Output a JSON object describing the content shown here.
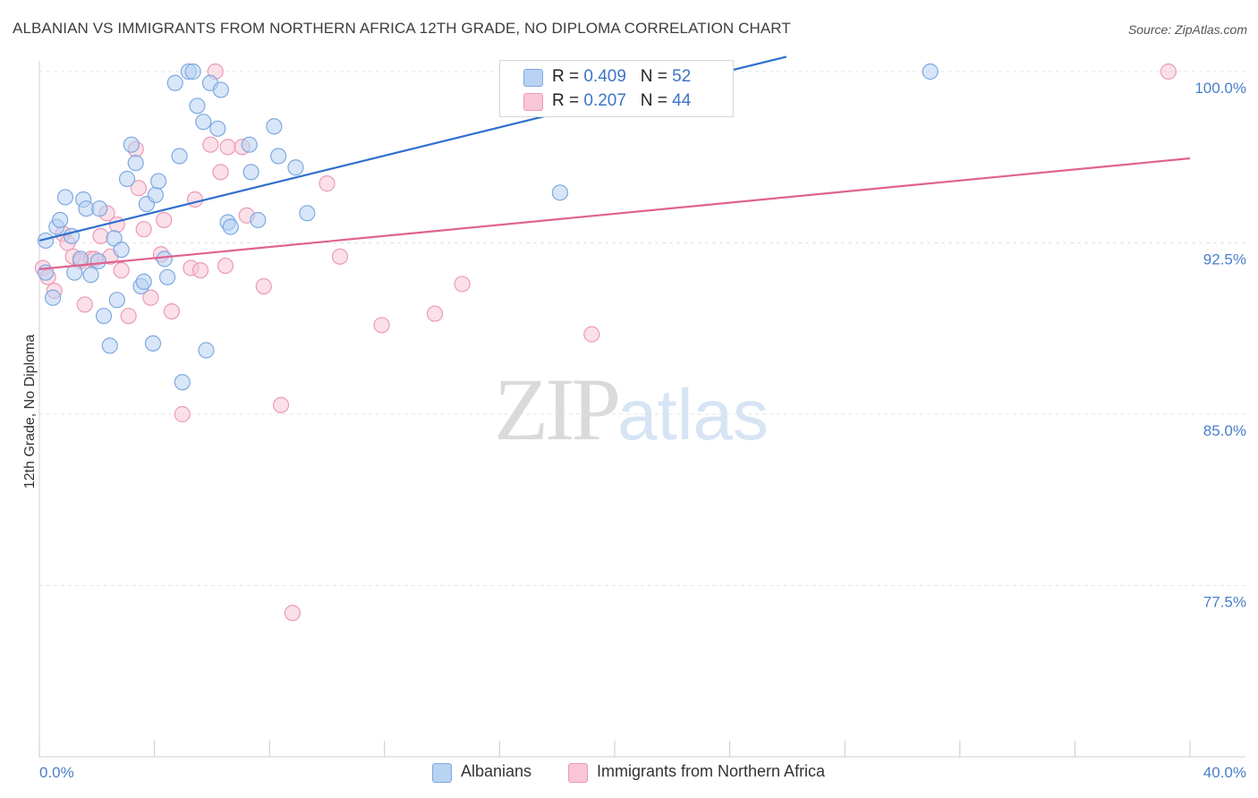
{
  "header": {
    "title": "ALBANIAN VS IMMIGRANTS FROM NORTHERN AFRICA 12TH GRADE, NO DIPLOMA CORRELATION CHART",
    "source": "Source: ZipAtlas.com"
  },
  "watermark": {
    "zip": "ZIP",
    "atlas": "atlas"
  },
  "legend": {
    "albanians": {
      "r_label": "R = ",
      "r_value": "0.409",
      "n_label": "N = ",
      "n_value": "52"
    },
    "immigrants": {
      "r_label": "R = ",
      "r_value": "0.207",
      "n_label": "N = ",
      "n_value": "44"
    }
  },
  "bottom_legend": {
    "albanians": "Albanians",
    "immigrants": "Immigrants from Northern Africa"
  },
  "colors": {
    "blue_fill": "#b8d2f2",
    "blue_stroke": "#7ea9e0",
    "blue_line": "#2f6fcc",
    "pink_fill": "#f8c6d6",
    "pink_stroke": "#ec9ab6",
    "pink_line": "#e0628e",
    "grid": "#e3e3e3",
    "tick_text": "#4a7ec9"
  },
  "chart_data": {
    "type": "scatter",
    "title": "ALBANIAN VS IMMIGRANTS FROM NORTHERN AFRICA 12TH GRADE, NO DIPLOMA CORRELATION CHART",
    "xlabel": "",
    "ylabel": "12th Grade, No Diploma",
    "xlim": [
      0,
      40
    ],
    "ylim": [
      70.0,
      101.0
    ],
    "x_tick_labels": [
      "0.0%",
      "40.0%"
    ],
    "y_ticks": [
      {
        "value": 77.5,
        "label": "77.5%"
      },
      {
        "value": 85.0,
        "label": "85.0%"
      },
      {
        "value": 92.5,
        "label": "92.5%"
      },
      {
        "value": 100.0,
        "label": "100.0%"
      }
    ],
    "series": [
      {
        "name": "Albanians",
        "r": 0.409,
        "n": 52,
        "trend": {
          "x": [
            0.0,
            25.97
          ],
          "y": [
            92.6,
            100.65
          ]
        },
        "points": [
          {
            "x": 0.22,
            "y": 92.6
          },
          {
            "x": 0.22,
            "y": 91.2
          },
          {
            "x": 0.47,
            "y": 90.1
          },
          {
            "x": 0.6,
            "y": 93.2
          },
          {
            "x": 0.72,
            "y": 93.5
          },
          {
            "x": 0.9,
            "y": 94.5
          },
          {
            "x": 1.12,
            "y": 92.8
          },
          {
            "x": 1.22,
            "y": 91.2
          },
          {
            "x": 1.43,
            "y": 91.8
          },
          {
            "x": 1.53,
            "y": 94.4
          },
          {
            "x": 1.63,
            "y": 94.0
          },
          {
            "x": 1.79,
            "y": 91.1
          },
          {
            "x": 2.05,
            "y": 91.7
          },
          {
            "x": 2.09,
            "y": 94.0
          },
          {
            "x": 2.24,
            "y": 89.3
          },
          {
            "x": 2.45,
            "y": 88.0
          },
          {
            "x": 2.6,
            "y": 92.7
          },
          {
            "x": 2.7,
            "y": 90.0
          },
          {
            "x": 2.85,
            "y": 92.2
          },
          {
            "x": 3.05,
            "y": 95.3
          },
          {
            "x": 3.2,
            "y": 96.8
          },
          {
            "x": 3.35,
            "y": 96.0
          },
          {
            "x": 3.53,
            "y": 90.6
          },
          {
            "x": 3.63,
            "y": 90.8
          },
          {
            "x": 3.73,
            "y": 94.2
          },
          {
            "x": 3.95,
            "y": 88.1
          },
          {
            "x": 4.04,
            "y": 94.6
          },
          {
            "x": 4.14,
            "y": 95.2
          },
          {
            "x": 4.35,
            "y": 91.8
          },
          {
            "x": 4.45,
            "y": 91.0
          },
          {
            "x": 4.72,
            "y": 99.5
          },
          {
            "x": 4.87,
            "y": 96.3
          },
          {
            "x": 4.97,
            "y": 86.4
          },
          {
            "x": 5.19,
            "y": 100.0
          },
          {
            "x": 5.34,
            "y": 100.0
          },
          {
            "x": 5.49,
            "y": 98.5
          },
          {
            "x": 5.7,
            "y": 97.8
          },
          {
            "x": 5.8,
            "y": 87.8
          },
          {
            "x": 5.94,
            "y": 99.5
          },
          {
            "x": 6.2,
            "y": 97.5
          },
          {
            "x": 6.31,
            "y": 99.2
          },
          {
            "x": 6.55,
            "y": 93.4
          },
          {
            "x": 6.65,
            "y": 93.2
          },
          {
            "x": 7.3,
            "y": 96.8
          },
          {
            "x": 7.36,
            "y": 95.6
          },
          {
            "x": 7.6,
            "y": 93.5
          },
          {
            "x": 8.16,
            "y": 97.6
          },
          {
            "x": 8.31,
            "y": 96.3
          },
          {
            "x": 8.91,
            "y": 95.8
          },
          {
            "x": 9.31,
            "y": 93.8
          },
          {
            "x": 18.1,
            "y": 94.7
          },
          {
            "x": 30.97,
            "y": 100.0
          }
        ]
      },
      {
        "name": "Immigrants from Northern Africa",
        "r": 0.207,
        "n": 44,
        "trend": {
          "x": [
            0.0,
            40.0
          ],
          "y": [
            91.35,
            96.2
          ]
        },
        "points": [
          {
            "x": 0.12,
            "y": 91.4
          },
          {
            "x": 0.3,
            "y": 91.0
          },
          {
            "x": 0.52,
            "y": 90.4
          },
          {
            "x": 0.82,
            "y": 92.9
          },
          {
            "x": 0.98,
            "y": 92.5
          },
          {
            "x": 1.17,
            "y": 91.9
          },
          {
            "x": 1.43,
            "y": 91.7
          },
          {
            "x": 1.58,
            "y": 89.8
          },
          {
            "x": 1.8,
            "y": 91.8
          },
          {
            "x": 1.92,
            "y": 91.8
          },
          {
            "x": 2.13,
            "y": 92.8
          },
          {
            "x": 2.35,
            "y": 93.8
          },
          {
            "x": 2.47,
            "y": 91.9
          },
          {
            "x": 2.7,
            "y": 93.3
          },
          {
            "x": 2.85,
            "y": 91.3
          },
          {
            "x": 3.1,
            "y": 89.3
          },
          {
            "x": 3.35,
            "y": 96.6
          },
          {
            "x": 3.45,
            "y": 94.9
          },
          {
            "x": 3.63,
            "y": 93.1
          },
          {
            "x": 3.87,
            "y": 90.1
          },
          {
            "x": 4.23,
            "y": 92.0
          },
          {
            "x": 4.33,
            "y": 93.5
          },
          {
            "x": 4.6,
            "y": 89.5
          },
          {
            "x": 4.97,
            "y": 85.0
          },
          {
            "x": 5.27,
            "y": 91.4
          },
          {
            "x": 5.41,
            "y": 94.4
          },
          {
            "x": 5.6,
            "y": 91.3
          },
          {
            "x": 5.95,
            "y": 96.8
          },
          {
            "x": 6.12,
            "y": 100.0
          },
          {
            "x": 6.3,
            "y": 95.6
          },
          {
            "x": 6.47,
            "y": 91.5
          },
          {
            "x": 6.55,
            "y": 96.7
          },
          {
            "x": 7.05,
            "y": 96.7
          },
          {
            "x": 7.21,
            "y": 93.7
          },
          {
            "x": 7.8,
            "y": 90.6
          },
          {
            "x": 8.4,
            "y": 85.4
          },
          {
            "x": 8.8,
            "y": 76.3
          },
          {
            "x": 10.0,
            "y": 95.1
          },
          {
            "x": 10.45,
            "y": 91.9
          },
          {
            "x": 11.9,
            "y": 88.9
          },
          {
            "x": 13.75,
            "y": 89.4
          },
          {
            "x": 14.7,
            "y": 90.7
          },
          {
            "x": 19.2,
            "y": 88.5
          },
          {
            "x": 39.25,
            "y": 100.0
          }
        ]
      }
    ]
  }
}
